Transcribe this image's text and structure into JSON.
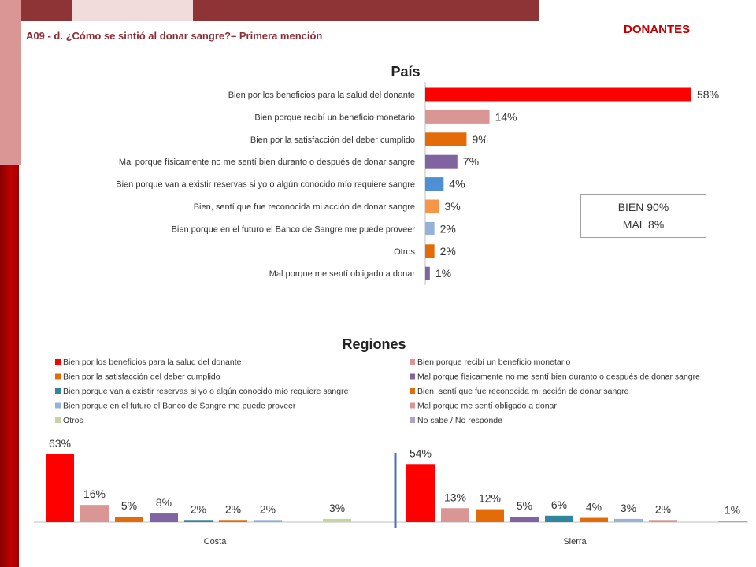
{
  "header": {
    "subtitle": "A09 - d. ¿Cómo se sintió al donar sangre?– Primera mención",
    "brand": "DONANTES"
  },
  "colors": {
    "deco_dark": "#8e3436",
    "deco_light": "#f2dcdb",
    "deco_rose": "#d99694",
    "deco_red": "#c00000"
  },
  "summary": {
    "line1": "BIEN  90%",
    "line2": "MAL 8%"
  },
  "chart_data": [
    {
      "type": "bar",
      "orientation": "horizontal",
      "title": "País",
      "categories": [
        "Bien por los beneficios para la salud del donante",
        "Bien porque recibí un beneficio monetario",
        "Bien por la satisfacción del deber cumplido",
        "Mal porque físicamente no me sentí bien duranto o después de donar sangre",
        "Bien porque van a existir reservas si yo o algún conocido mío requiere sangre",
        "Bien, sentí que fue reconocida mi acción de donar sangre",
        "Bien porque en el futuro el Banco de Sangre me puede proveer",
        "Otros",
        "Mal porque me sentí obligado a donar"
      ],
      "values": [
        58,
        14,
        9,
        7,
        4,
        3,
        2,
        2,
        1
      ],
      "labels": [
        "58%",
        "14%",
        "9%",
        "7%",
        "4%",
        "3%",
        "2%",
        "2%",
        "1%"
      ],
      "colors": [
        "#ff0000",
        "#d99694",
        "#e36c09",
        "#8064a2",
        "#4f8fd6",
        "#f79646",
        "#95b3d7",
        "#e36c09",
        "#8064a2"
      ],
      "xlim": [
        0,
        58
      ]
    },
    {
      "type": "bar",
      "title": "Regiones",
      "categories": [
        "Costa",
        "Sierra"
      ],
      "legend": [
        {
          "name": "Bien por los beneficios para la salud del donante",
          "color": "#ff0000"
        },
        {
          "name": "Bien porque recibí un beneficio monetario",
          "color": "#d99694"
        },
        {
          "name": "Bien por la satisfacción del deber cumplido",
          "color": "#e36c09"
        },
        {
          "name": "Mal porque físicamente no me sentí bien duranto o después de donar sangre",
          "color": "#8064a2"
        },
        {
          "name": "Bien porque van a existir reservas si yo o algún conocido mío requiere sangre",
          "color": "#31859c"
        },
        {
          "name": "Bien, sentí que fue reconocida mi acción de donar sangre",
          "color": "#e36c09"
        },
        {
          "name": "Bien porque en el futuro el Banco de Sangre me puede proveer",
          "color": "#95b3d7"
        },
        {
          "name": "Mal porque me sentí obligado a donar",
          "color": "#d99694"
        },
        {
          "name": "Otros",
          "color": "#c3d69b"
        },
        {
          "name": "No sabe / No responde",
          "color": "#b3a2c7"
        }
      ],
      "series_colors": [
        "#ff0000",
        "#d99694",
        "#e36c09",
        "#8064a2",
        "#31859c",
        "#e36c09",
        "#95b3d7",
        "#d99694",
        "#c3d69b",
        "#b3a2c7"
      ],
      "values": [
        [
          63,
          16,
          5,
          8,
          2,
          2,
          2,
          null,
          3,
          null
        ],
        [
          54,
          13,
          12,
          5,
          6,
          4,
          3,
          2,
          null,
          1
        ]
      ],
      "labels": [
        [
          "63%",
          "16%",
          "5%",
          "8%",
          "2%",
          "2%",
          "2%",
          null,
          "3%",
          null
        ],
        [
          "54%",
          "13%",
          "12%",
          "5%",
          "6%",
          "4%",
          "3%",
          "2%",
          null,
          "1%"
        ]
      ],
      "ylim": [
        0,
        63
      ]
    }
  ]
}
